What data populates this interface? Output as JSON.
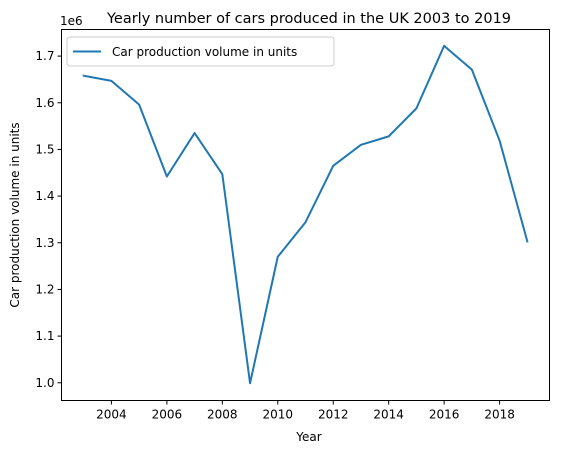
{
  "chart_data": {
    "type": "line",
    "title": "Yearly number of cars produced in the UK 2003 to 2019",
    "xlabel": "Year",
    "ylabel": "Car production volume in units",
    "y_offset_label": "1e6",
    "xlim": [
      2002.2,
      2019.8
    ],
    "ylim": [
      0.962,
      1.757
    ],
    "x_ticks": [
      2004,
      2006,
      2008,
      2010,
      2012,
      2014,
      2016,
      2018
    ],
    "y_ticks": [
      1.0,
      1.1,
      1.2,
      1.3,
      1.4,
      1.5,
      1.6,
      1.7
    ],
    "grid": false,
    "legend_position": "upper-left",
    "series": [
      {
        "name": "Car production volume in units",
        "color": "#1f77b4",
        "x": [
          2003,
          2004,
          2005,
          2006,
          2007,
          2008,
          2009,
          2010,
          2011,
          2012,
          2013,
          2014,
          2015,
          2016,
          2017,
          2018,
          2019
        ],
        "y": [
          1.658,
          1.647,
          1.596,
          1.442,
          1.535,
          1.447,
          0.999,
          1.27,
          1.344,
          1.465,
          1.51,
          1.528,
          1.588,
          1.722,
          1.671,
          1.519,
          1.303
        ]
      }
    ]
  }
}
